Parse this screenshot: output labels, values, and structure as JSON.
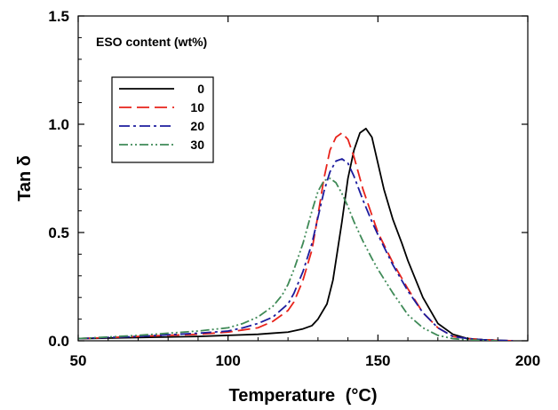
{
  "chart_data": {
    "type": "line",
    "title": "",
    "xlabel": "Temperature",
    "xlabel_unit": "(°C)",
    "ylabel": "Tan δ",
    "xlim": [
      50,
      200
    ],
    "ylim": [
      0.0,
      1.5
    ],
    "xticks": [
      50,
      100,
      150,
      200
    ],
    "xtick_labels": [
      "50",
      "100",
      "150",
      "200"
    ],
    "yticks": [
      0.0,
      0.5,
      1.0,
      1.5
    ],
    "ytick_labels": [
      "0.0",
      "0.5",
      "1.0",
      "1.5"
    ],
    "grid": false,
    "legend": {
      "title": "ESO content (wt%)",
      "placement": "top-left"
    },
    "series": [
      {
        "name": "0",
        "color": "#000000",
        "dash": "solid",
        "x": [
          50,
          70,
          90,
          100,
          110,
          115,
          120,
          125,
          128,
          130,
          133,
          135,
          138,
          140,
          142,
          144,
          146,
          148,
          150,
          152,
          155,
          158,
          160,
          165,
          170,
          175,
          180,
          185,
          190,
          195
        ],
        "y": [
          0.01,
          0.015,
          0.02,
          0.025,
          0.03,
          0.035,
          0.04,
          0.055,
          0.07,
          0.1,
          0.17,
          0.28,
          0.55,
          0.75,
          0.88,
          0.96,
          0.98,
          0.94,
          0.82,
          0.7,
          0.56,
          0.45,
          0.37,
          0.2,
          0.08,
          0.03,
          0.01,
          0.005,
          0.002,
          0.0
        ]
      },
      {
        "name": "10",
        "color": "#e8231b",
        "dash": "long-dash",
        "x": [
          50,
          70,
          90,
          100,
          105,
          110,
          115,
          120,
          122,
          125,
          128,
          130,
          132,
          134,
          136,
          138,
          140,
          142,
          145,
          148,
          150,
          155,
          160,
          165,
          170,
          175,
          180,
          185,
          190,
          195
        ],
        "y": [
          0.01,
          0.02,
          0.03,
          0.04,
          0.05,
          0.06,
          0.09,
          0.14,
          0.18,
          0.28,
          0.42,
          0.58,
          0.75,
          0.88,
          0.94,
          0.96,
          0.93,
          0.85,
          0.7,
          0.58,
          0.5,
          0.36,
          0.24,
          0.13,
          0.06,
          0.02,
          0.01,
          0.005,
          0.002,
          0.0
        ]
      },
      {
        "name": "20",
        "color": "#1c1c9e",
        "dash": "dash-dot",
        "x": [
          50,
          70,
          90,
          100,
          105,
          110,
          115,
          120,
          122,
          125,
          128,
          130,
          132,
          134,
          136,
          138,
          140,
          142,
          145,
          148,
          150,
          155,
          160,
          165,
          170,
          175,
          180,
          185,
          190,
          195
        ],
        "y": [
          0.01,
          0.02,
          0.035,
          0.045,
          0.06,
          0.08,
          0.11,
          0.17,
          0.22,
          0.32,
          0.45,
          0.57,
          0.69,
          0.78,
          0.83,
          0.84,
          0.82,
          0.76,
          0.65,
          0.55,
          0.49,
          0.35,
          0.23,
          0.13,
          0.06,
          0.02,
          0.01,
          0.005,
          0.002,
          0.0
        ]
      },
      {
        "name": "30",
        "color": "#3f8a57",
        "dash": "dash-dot-dot",
        "x": [
          50,
          70,
          90,
          100,
          105,
          110,
          115,
          118,
          120,
          122,
          125,
          128,
          130,
          132,
          134,
          136,
          138,
          140,
          142,
          145,
          148,
          150,
          155,
          160,
          165,
          170,
          175,
          180,
          185,
          190
        ],
        "y": [
          0.01,
          0.025,
          0.045,
          0.06,
          0.08,
          0.11,
          0.16,
          0.21,
          0.26,
          0.33,
          0.45,
          0.6,
          0.69,
          0.74,
          0.75,
          0.73,
          0.68,
          0.62,
          0.55,
          0.46,
          0.38,
          0.33,
          0.22,
          0.12,
          0.06,
          0.025,
          0.01,
          0.004,
          0.002,
          0.0
        ]
      }
    ]
  }
}
